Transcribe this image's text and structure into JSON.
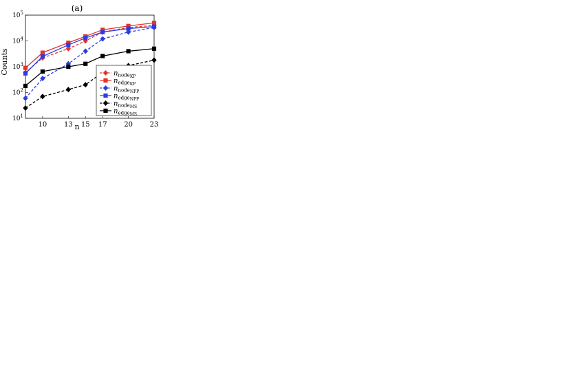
{
  "panel_label": "(a)",
  "chart_data": {
    "type": "line",
    "title": "",
    "xlabel": "n",
    "ylabel": "Counts",
    "yscale": "log",
    "grid": false,
    "legend_position": "bottom-right",
    "x": [
      8,
      10,
      13,
      15,
      17,
      20,
      23
    ],
    "xticks": [
      "10",
      "13",
      "15",
      "17",
      "20",
      "23"
    ],
    "xlim": [
      8,
      23
    ],
    "ylim": [
      10,
      100000
    ],
    "yticks": [
      "10^1",
      "10^2",
      "10^3",
      "10^4",
      "10^5"
    ],
    "series": [
      {
        "name": "n_node_KP",
        "label_base": "n",
        "label_sub": "node",
        "label_subsub": "KP",
        "color": "#e8312a",
        "marker": "diamond",
        "dashed": true,
        "values": [
          600,
          2200,
          5000,
          10000,
          22000,
          33000,
          40000
        ]
      },
      {
        "name": "n_edge_KP",
        "label_base": "n",
        "label_sub": "edge",
        "label_subsub": "KP",
        "color": "#e8312a",
        "marker": "square",
        "dashed": false,
        "values": [
          900,
          3500,
          8500,
          15000,
          27000,
          38000,
          50000
        ]
      },
      {
        "name": "n_node_NPP",
        "label_base": "n",
        "label_sub": "node",
        "label_subsub": "NPP",
        "color": "#2c3de0",
        "marker": "diamond",
        "dashed": true,
        "values": [
          60,
          350,
          1300,
          4000,
          12000,
          22000,
          33000
        ]
      },
      {
        "name": "n_edge_NPP",
        "label_base": "n",
        "label_sub": "edge",
        "label_subsub": "NPP",
        "color": "#2c3de0",
        "marker": "square",
        "dashed": false,
        "values": [
          550,
          2500,
          7000,
          13000,
          22000,
          30000,
          36000
        ]
      },
      {
        "name": "n_node_MS",
        "label_base": "n",
        "label_sub": "node",
        "label_subsub": "MS",
        "color": "#000000",
        "marker": "diamond",
        "dashed": true,
        "values": [
          25,
          70,
          130,
          200,
          600,
          1100,
          1800
        ]
      },
      {
        "name": "n_edge_MS",
        "label_base": "n",
        "label_sub": "edge",
        "label_subsub": "MS",
        "color": "#000000",
        "marker": "square",
        "dashed": false,
        "values": [
          180,
          650,
          1000,
          1300,
          2600,
          4000,
          5000
        ]
      }
    ]
  }
}
